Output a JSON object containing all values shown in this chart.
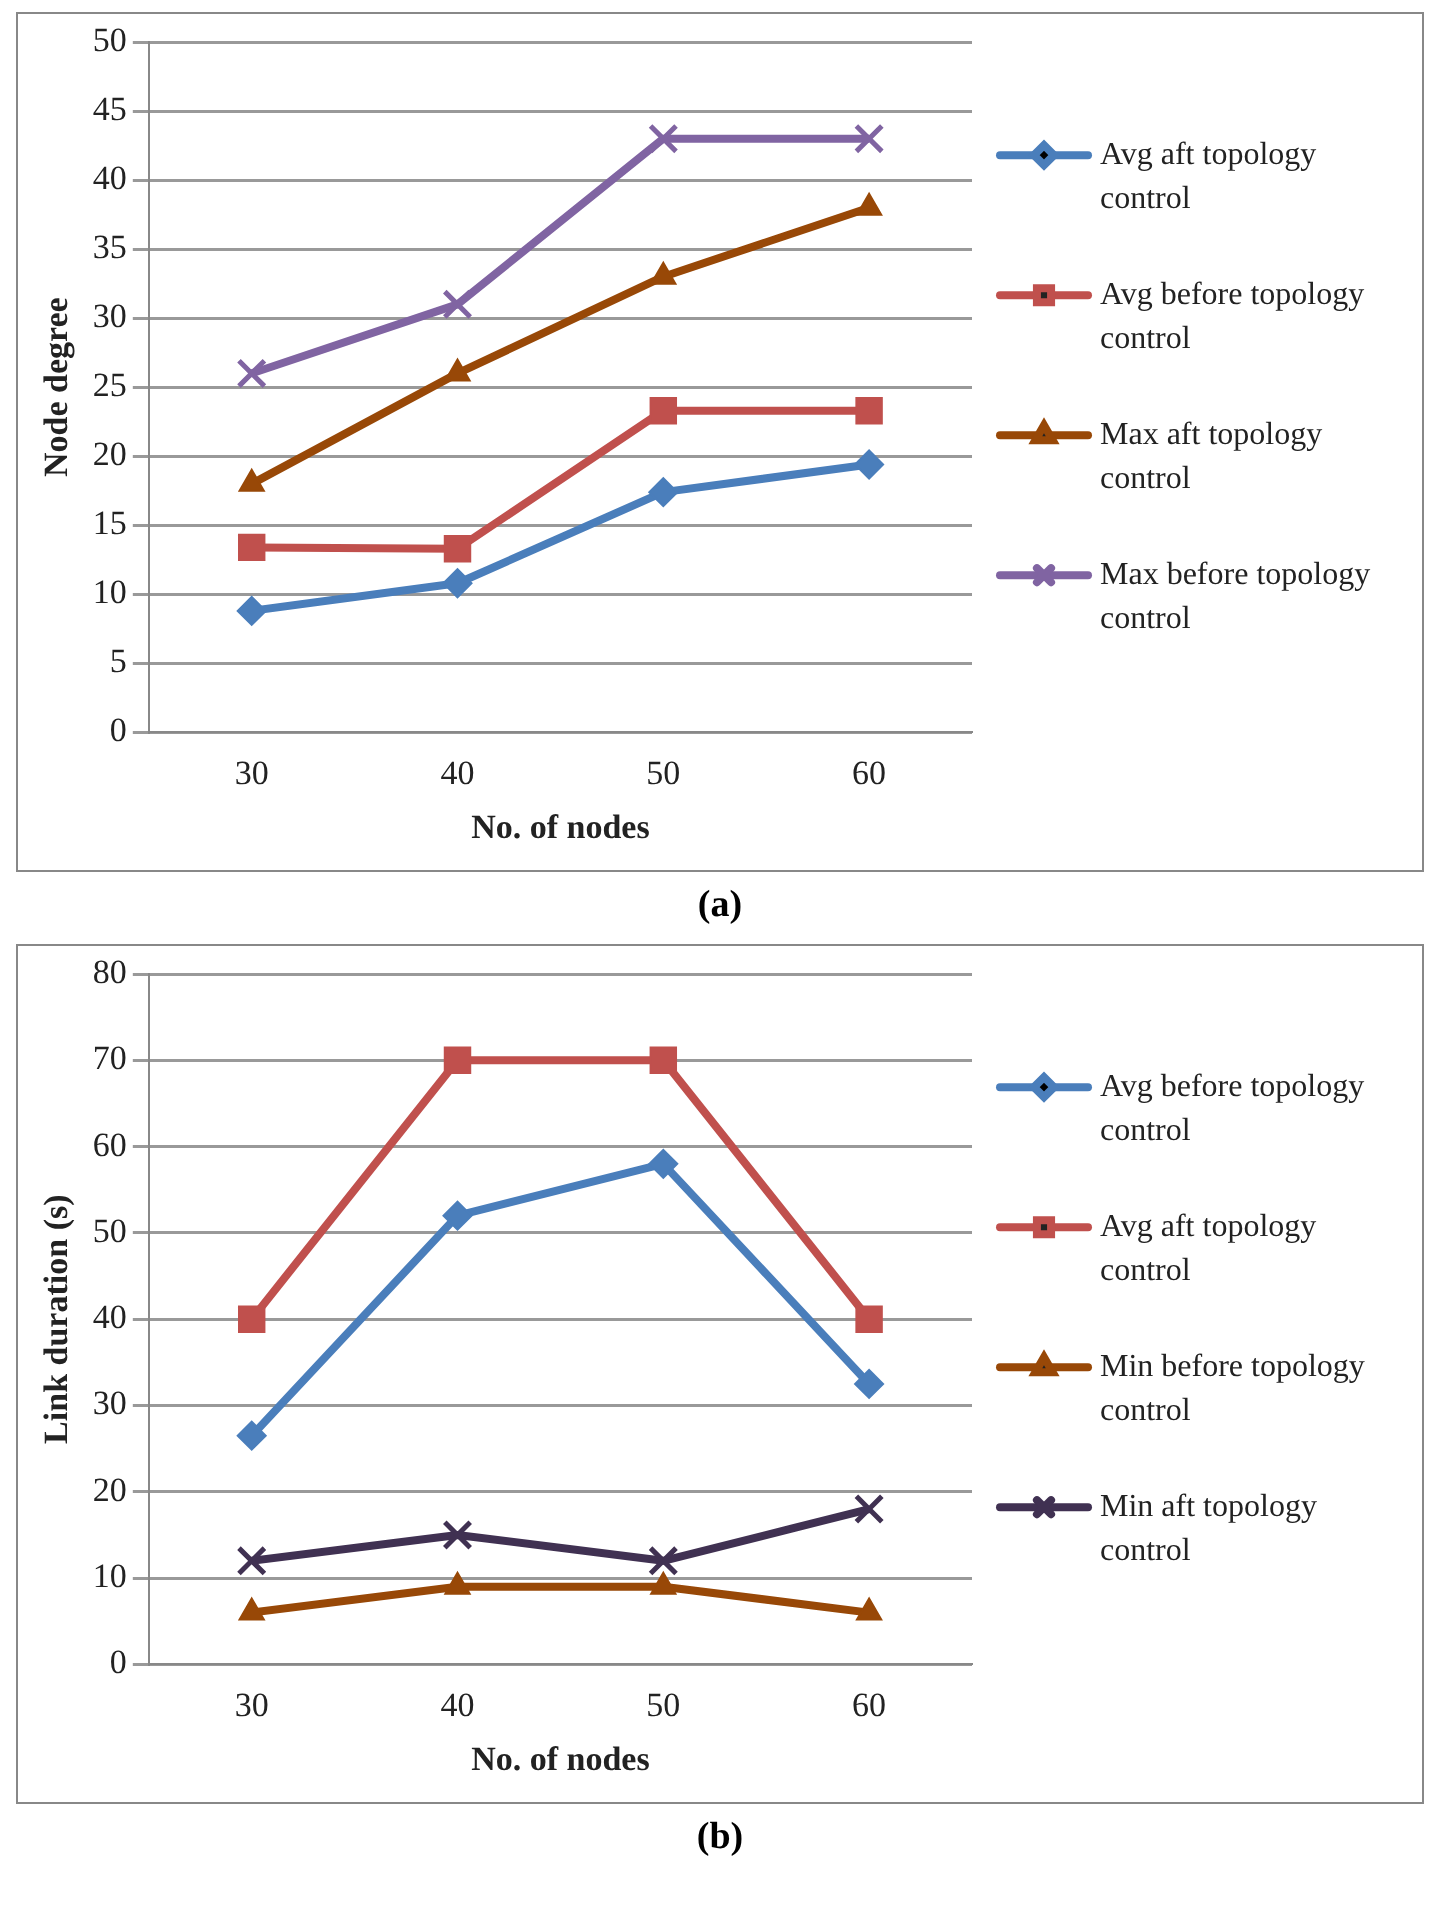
{
  "chart_data": [
    {
      "type": "line",
      "xlabel": "No. of nodes",
      "ylabel": "Node degree",
      "categories": [
        "30",
        "40",
        "50",
        "60"
      ],
      "ylim": [
        0,
        50
      ],
      "yticks": [
        0,
        5,
        10,
        15,
        20,
        25,
        30,
        35,
        40,
        45,
        50
      ],
      "grid": "y",
      "legend": "right",
      "annotations": [
        "(a)"
      ],
      "series": [
        {
          "name": "Avg aft topology control",
          "color": "#4a7ebb",
          "marker": "diamond",
          "values": [
            8.8,
            10.8,
            17.4,
            19.4
          ]
        },
        {
          "name": "Avg before topology control",
          "color": "#c0504d",
          "marker": "square",
          "values": [
            13.4,
            13.3,
            23.3,
            23.3
          ]
        },
        {
          "name": "Max aft topology control",
          "color": "#984807",
          "marker": "triangle",
          "values": [
            18,
            26,
            33,
            38
          ]
        },
        {
          "name": "Max before topology control",
          "color": "#8064a2",
          "marker": "cross",
          "values": [
            26,
            31,
            43,
            43
          ]
        }
      ]
    },
    {
      "type": "line",
      "xlabel": "No. of nodes",
      "ylabel": "Link duration (s)",
      "categories": [
        "30",
        "40",
        "50",
        "60"
      ],
      "ylim": [
        0,
        80
      ],
      "yticks": [
        0,
        10,
        20,
        30,
        40,
        50,
        60,
        70,
        80
      ],
      "grid": "y",
      "legend": "right",
      "annotations": [
        "(b)"
      ],
      "series": [
        {
          "name": "Avg before topology control",
          "color": "#4a7ebb",
          "marker": "diamond",
          "values": [
            26.5,
            52,
            58,
            32.5
          ]
        },
        {
          "name": "Avg aft topology control",
          "color": "#c0504d",
          "marker": "square",
          "values": [
            40,
            70,
            70,
            40
          ]
        },
        {
          "name": "Min before topology control",
          "color": "#984807",
          "marker": "triangle",
          "values": [
            6,
            9,
            9,
            6
          ]
        },
        {
          "name": "Min aft topology control",
          "color": "#403152",
          "marker": "cross",
          "values": [
            12,
            15,
            12,
            18
          ]
        }
      ]
    }
  ]
}
